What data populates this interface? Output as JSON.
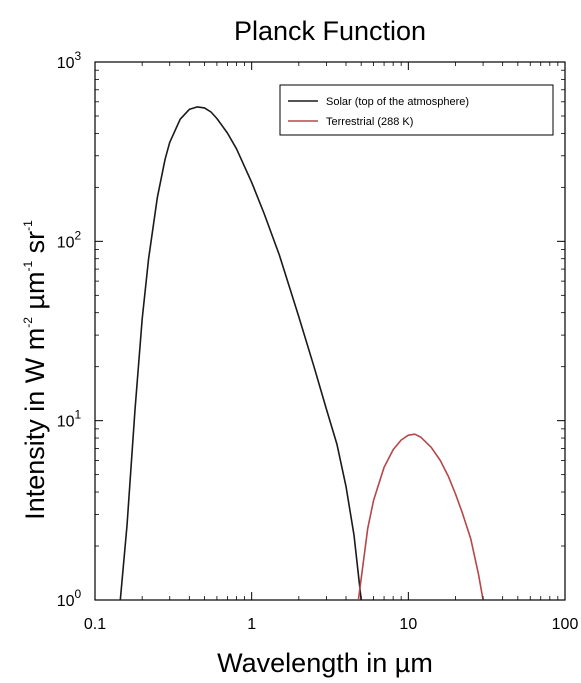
{
  "chart_data": {
    "type": "line",
    "title": "Planck Function",
    "xlabel": "Wavelength in µm",
    "ylabel": {
      "parts": [
        "Intensity in W m",
        "-2",
        " µm",
        "-1",
        " sr",
        "-1"
      ]
    },
    "x_scale": "log",
    "y_scale": "log",
    "xlim": [
      0.1,
      100
    ],
    "ylim": [
      1,
      1000
    ],
    "x_ticks": [
      {
        "value": 0.1,
        "label": "0.1"
      },
      {
        "value": 1,
        "label": "1"
      },
      {
        "value": 10,
        "label": "10"
      },
      {
        "value": 100,
        "label": "100"
      }
    ],
    "y_ticks": [
      {
        "value": 1,
        "base": "10",
        "exp": "0"
      },
      {
        "value": 10,
        "base": "10",
        "exp": "1"
      },
      {
        "value": 100,
        "base": "10",
        "exp": "2"
      },
      {
        "value": 1000,
        "base": "10",
        "exp": "3"
      }
    ],
    "grid": false,
    "legend": {
      "placement": "top-right"
    },
    "series": [
      {
        "name": "Solar (top of the atmosphere)",
        "color": "#1a1a1a",
        "x": [
          0.145,
          0.16,
          0.18,
          0.2,
          0.22,
          0.25,
          0.28,
          0.3,
          0.35,
          0.4,
          0.45,
          0.5,
          0.55,
          0.6,
          0.7,
          0.8,
          1.0,
          1.2,
          1.5,
          2.0,
          2.5,
          3.0,
          3.5,
          4.0,
          4.5,
          5.0
        ],
        "y": [
          1.0,
          2.6,
          11.5,
          37,
          80,
          175,
          287,
          356,
          480,
          544,
          562,
          555,
          526,
          484,
          402,
          328,
          213,
          143,
          84,
          38,
          20,
          11.6,
          7.4,
          4.3,
          2.3,
          1.0
        ]
      },
      {
        "name": "Terrestrial (288 K)",
        "color": "#b5474b",
        "x": [
          4.8,
          5.5,
          6,
          7,
          8,
          9,
          10,
          11,
          12,
          14,
          16,
          18,
          20,
          22,
          25,
          28,
          30
        ],
        "y": [
          1.0,
          2.5,
          3.6,
          5.5,
          6.9,
          7.8,
          8.3,
          8.4,
          8.1,
          7.1,
          6.0,
          4.9,
          3.9,
          3.1,
          2.2,
          1.4,
          1.0
        ]
      }
    ]
  }
}
